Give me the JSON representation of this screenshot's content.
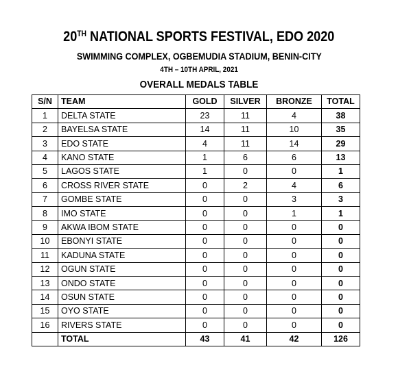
{
  "header": {
    "title": {
      "number": "20",
      "suffix": "TH",
      "text": "NATIONAL SPORTS FESTIVAL, EDO 2020"
    },
    "subtitle": "SWIMMING COMPLEX, OGBEMUDIA STADIUM, BENIN-CITY",
    "dates": "4TH – 10TH APRIL, 2021",
    "table_title": "OVERALL MEDALS TABLE"
  },
  "table": {
    "columns": [
      "S/N",
      "TEAM",
      "GOLD",
      "SILVER",
      "BRONZE",
      "TOTAL"
    ],
    "rows": [
      [
        1,
        "DELTA STATE",
        23,
        11,
        4,
        38
      ],
      [
        2,
        "BAYELSA STATE",
        14,
        11,
        10,
        35
      ],
      [
        3,
        "EDO STATE",
        4,
        11,
        14,
        29
      ],
      [
        4,
        "KANO STATE",
        1,
        6,
        6,
        13
      ],
      [
        5,
        "LAGOS STATE",
        1,
        0,
        0,
        1
      ],
      [
        6,
        "CROSS RIVER STATE",
        0,
        2,
        4,
        6
      ],
      [
        7,
        "GOMBE STATE",
        0,
        0,
        3,
        3
      ],
      [
        8,
        "IMO STATE",
        0,
        0,
        1,
        1
      ],
      [
        9,
        "AKWA IBOM STATE",
        0,
        0,
        0,
        0
      ],
      [
        10,
        "EBONYI STATE",
        0,
        0,
        0,
        0
      ],
      [
        11,
        "KADUNA STATE",
        0,
        0,
        0,
        0
      ],
      [
        12,
        "OGUN STATE",
        0,
        0,
        0,
        0
      ],
      [
        13,
        "ONDO STATE",
        0,
        0,
        0,
        0
      ],
      [
        14,
        "OSUN STATE",
        0,
        0,
        0,
        0
      ],
      [
        15,
        "OYO STATE",
        0,
        0,
        0,
        0
      ],
      [
        16,
        "RIVERS STATE",
        0,
        0,
        0,
        0
      ]
    ],
    "total": {
      "label": "TOTAL",
      "values": [
        43,
        41,
        42,
        126
      ]
    }
  }
}
